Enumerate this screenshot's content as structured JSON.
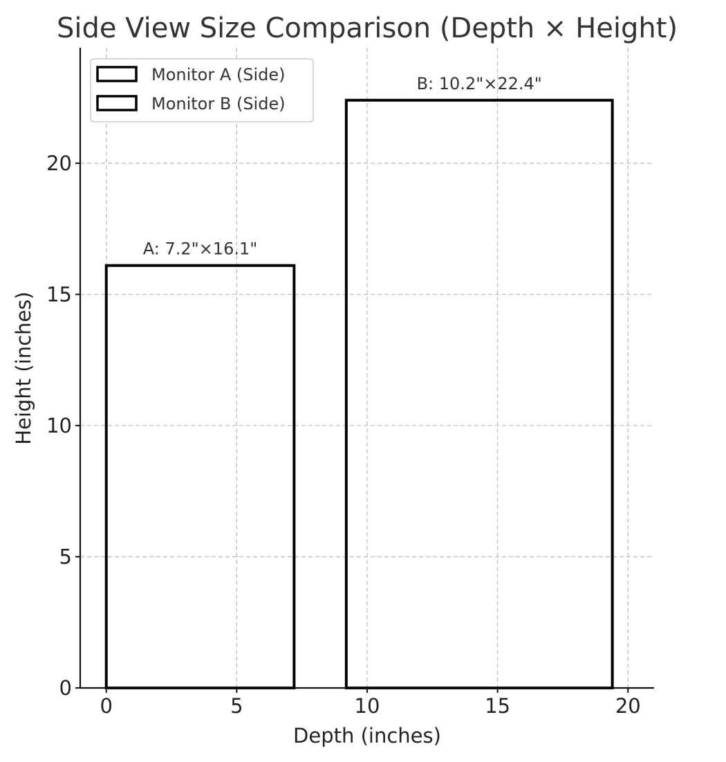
{
  "chart_data": {
    "type": "bar",
    "title": "Side View Size Comparison (Depth × Height)",
    "xlabel": "Depth (inches)",
    "ylabel": "Height (inches)",
    "xlim": [
      -1,
      21
    ],
    "ylim": [
      0,
      24.4
    ],
    "xticks": [
      0,
      5,
      10,
      15,
      20
    ],
    "yticks": [
      0,
      5,
      10,
      15,
      20
    ],
    "grid": true,
    "legend_position": "upper-left",
    "series": [
      {
        "name": "Monitor A (Side)",
        "x_start": 0,
        "depth": 7.2,
        "height": 16.1,
        "annotation": "A: 7.2\"×16.1\"",
        "edge_color": "#000000",
        "fill": "none"
      },
      {
        "name": "Monitor B (Side)",
        "x_start": 9.2,
        "depth": 10.2,
        "height": 22.4,
        "annotation": "B: 10.2\"×22.4\"",
        "edge_color": "#000000",
        "fill": "none"
      }
    ]
  }
}
